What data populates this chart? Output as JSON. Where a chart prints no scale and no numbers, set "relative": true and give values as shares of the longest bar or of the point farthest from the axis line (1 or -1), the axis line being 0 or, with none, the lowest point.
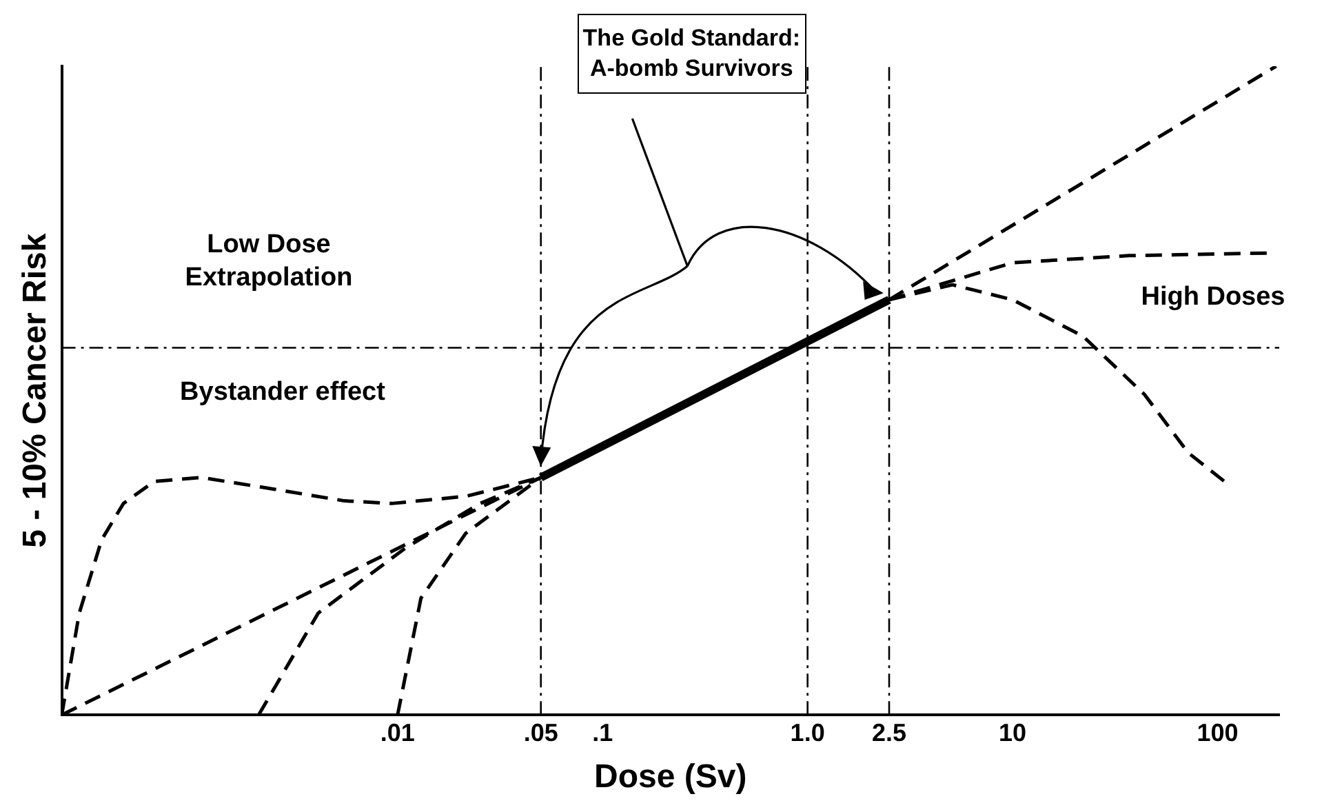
{
  "chart_data": {
    "type": "line",
    "relative": true,
    "xlabel": "Dose (Sv)",
    "ylabel": "5 - 10% Cancer Risk",
    "log": "x",
    "xlim": [
      0.00023,
      200
    ],
    "xticks": [
      {
        "value": 0.01,
        "label": ".01"
      },
      {
        "value": 0.05,
        "label": ".05"
      },
      {
        "value": 0.1,
        "label": ".1"
      },
      {
        "value": 1,
        "label": "1.0"
      },
      2.5,
      10,
      100
    ],
    "tick_labels": "x",
    "grid": false,
    "legend": false,
    "marker": "none",
    "series": [
      {
        "color": "#000000",
        "line_style": "solid",
        "x": [
          0.05,
          2.5
        ],
        "values": [
          0.366,
          0.64
        ]
      },
      {
        "color": "#000000",
        "line_style": "dashed",
        "x": [
          0.00023,
          0.05
        ],
        "values": [
          0,
          0.366
        ]
      },
      {
        "color": "#000000",
        "line_style": "dashed",
        "x": [
          0.00023,
          0.00028,
          0.00036,
          0.00046,
          0.00065,
          0.0011,
          0.0025,
          0.0055,
          0.0094,
          0.0215,
          0.05
        ],
        "values": [
          0,
          0.157,
          0.27,
          0.326,
          0.36,
          0.366,
          0.348,
          0.33,
          0.326,
          0.337,
          0.366
        ]
      },
      {
        "color": "#000000",
        "line_style": "dashed",
        "x": [
          0.0021,
          0.0041,
          0.011,
          0.0253,
          0.05
        ],
        "values": [
          0,
          0.157,
          0.258,
          0.326,
          0.366
        ]
      },
      {
        "color": "#000000",
        "line_style": "dashed",
        "x": [
          0.01,
          0.013,
          0.0215,
          0.05
        ],
        "values": [
          0,
          0.18,
          0.28,
          0.366
        ]
      },
      {
        "color": "#000000",
        "line_style": "dashed",
        "x": [
          2.5,
          193
        ],
        "values": [
          0.64,
          1
        ]
      },
      {
        "color": "#000000",
        "line_style": "dashed",
        "x": [
          2.5,
          10,
          37,
          181
        ],
        "values": [
          0.64,
          0.697,
          0.708,
          0.712
        ]
      },
      {
        "color": "#000000",
        "line_style": "dashed",
        "x": [
          2.5,
          5.1,
          10,
          22,
          44,
          72,
          108
        ],
        "values": [
          0.64,
          0.663,
          0.64,
          0.584,
          0.494,
          0.404,
          0.36
        ]
      }
    ],
    "ref_lines": [
      {
        "axis": "x",
        "value": 0.05,
        "line_style": "dashdot",
        "color": "#000000"
      },
      {
        "axis": "x",
        "value": 1,
        "line_style": "dashdot",
        "color": "#000000"
      },
      {
        "axis": "x",
        "value": 2.5,
        "line_style": "dashdot",
        "color": "#000000"
      },
      {
        "axis": "y",
        "value": 0.566,
        "line_style": "dashdot",
        "color": "#000000"
      }
    ],
    "annotations": [
      "The Gold Standard:\nA-bomb Survivors",
      "Low Dose\nExtrapolation",
      "Bystander effect",
      "High Doses"
    ]
  }
}
